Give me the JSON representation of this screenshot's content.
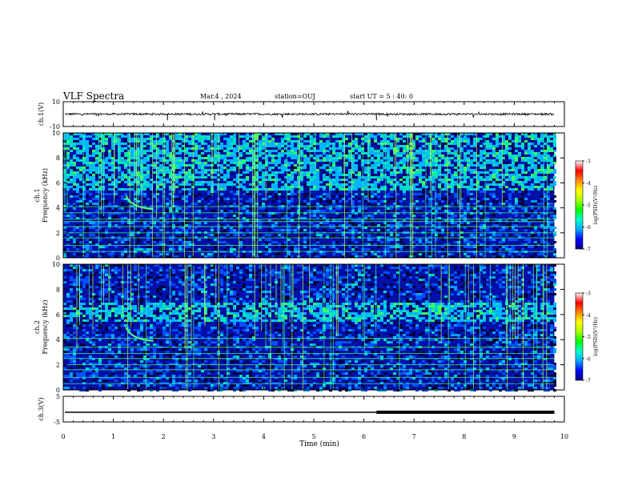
{
  "header": {
    "title": "VLF Spectra",
    "date": "Mar.4 , 2024",
    "station": "station=OUJ",
    "start": "start UT = 5 : 40: 0"
  },
  "colorbar": {
    "ticks": [
      "-3",
      "-4",
      "-5",
      "-6",
      "-7"
    ],
    "label": "log(PSD)(V²/Hz)",
    "colors": [
      "#000080",
      "#0000ff",
      "#00aaff",
      "#00ffcc",
      "#00ff00",
      "#aaff00",
      "#ffff00",
      "#ff8800",
      "#ff0000",
      "#ffffff"
    ]
  },
  "chart_data": [
    {
      "type": "line",
      "name": "ch1-waveform",
      "ylabel": "ch.1(V)",
      "ylim": [
        -10,
        10
      ],
      "yticks": [
        "10",
        "-10"
      ],
      "baseline": 0,
      "description_range": [
        -1,
        1
      ]
    },
    {
      "type": "heatmap",
      "name": "ch1-spectrogram",
      "ylabel": "ch.1 Frequency (kHz)",
      "ylabel_lines": [
        "ch.1",
        "Frequency (kHz)"
      ],
      "ylim": [
        0,
        10
      ],
      "yticks": [
        "0",
        "2",
        "4",
        "6",
        "8",
        "10"
      ],
      "zlim": [
        -7,
        -3
      ],
      "persistent_lines_khz": [
        0.5,
        1.0,
        1.6,
        2.0,
        2.5,
        2.9,
        3.1,
        3.6,
        4.1
      ],
      "noise_band_khz": [
        5.5,
        10
      ]
    },
    {
      "type": "heatmap",
      "name": "ch2-spectrogram",
      "ylabel": "ch.2 Frequency (kHz)",
      "ylabel_lines": [
        "ch.2",
        "Frequency (kHz)"
      ],
      "ylim": [
        0,
        10
      ],
      "yticks": [
        "0",
        "2",
        "4",
        "6",
        "8",
        "10"
      ],
      "zlim": [
        -7,
        -3
      ],
      "persistent_lines_khz": [
        0.5,
        1.0,
        1.6,
        2.0,
        2.5,
        2.9,
        3.4,
        4.1
      ],
      "noise_band_khz": [
        5.5,
        7
      ]
    },
    {
      "type": "line",
      "name": "ch3-signal",
      "ylabel": "ch.3(V)",
      "ylim": [
        -5,
        5
      ],
      "yticks": [
        "5",
        "-5"
      ],
      "level": -1.2,
      "thick_from_min": 6.25
    }
  ],
  "xaxis": {
    "label": "Time (min)",
    "ticks": [
      "0",
      "1",
      "2",
      "3",
      "4",
      "5",
      "6",
      "7",
      "8",
      "9",
      "10"
    ],
    "xlim": [
      0,
      10
    ],
    "data_end_min": 9.8
  }
}
